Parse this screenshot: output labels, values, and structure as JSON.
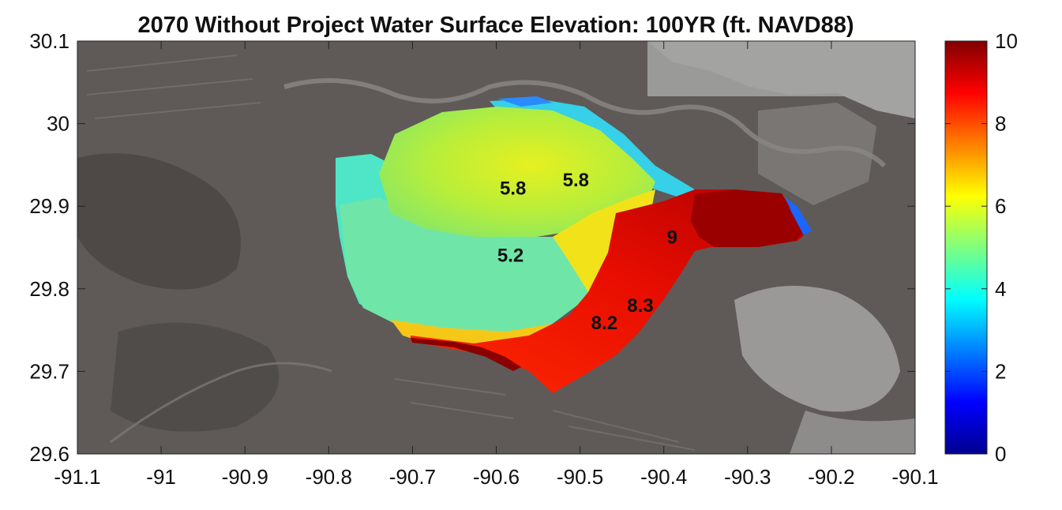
{
  "title": "2070 Without Project Water Surface Elevation: 100YR (ft. NAVD88)",
  "map": {
    "lon_range": [
      -91.1,
      -90.1
    ],
    "lat_range": [
      29.6,
      30.1
    ],
    "x_ticks": [
      "-91.1",
      "-91",
      "-90.9",
      "-90.8",
      "-90.7",
      "-90.6",
      "-90.5",
      "-90.4",
      "-90.3",
      "-90.2",
      "-90.1"
    ],
    "y_ticks": [
      "30.1",
      "30",
      "29.9",
      "29.8",
      "29.7",
      "29.6"
    ],
    "labels": [
      {
        "text": "5.8",
        "lon": -90.58,
        "lat": 29.914
      },
      {
        "text": "5.8",
        "lon": -90.505,
        "lat": 29.924
      },
      {
        "text": "5.2",
        "lon": -90.583,
        "lat": 29.833
      },
      {
        "text": "9",
        "lon": -90.39,
        "lat": 29.855
      },
      {
        "text": "8.3",
        "lon": -90.428,
        "lat": 29.772
      },
      {
        "text": "8.2",
        "lon": -90.471,
        "lat": 29.751
      }
    ]
  },
  "colorbar": {
    "range": [
      0,
      10
    ],
    "ticks": [
      "10",
      "8",
      "6",
      "4",
      "2",
      "0"
    ],
    "colormap": "jet"
  }
}
